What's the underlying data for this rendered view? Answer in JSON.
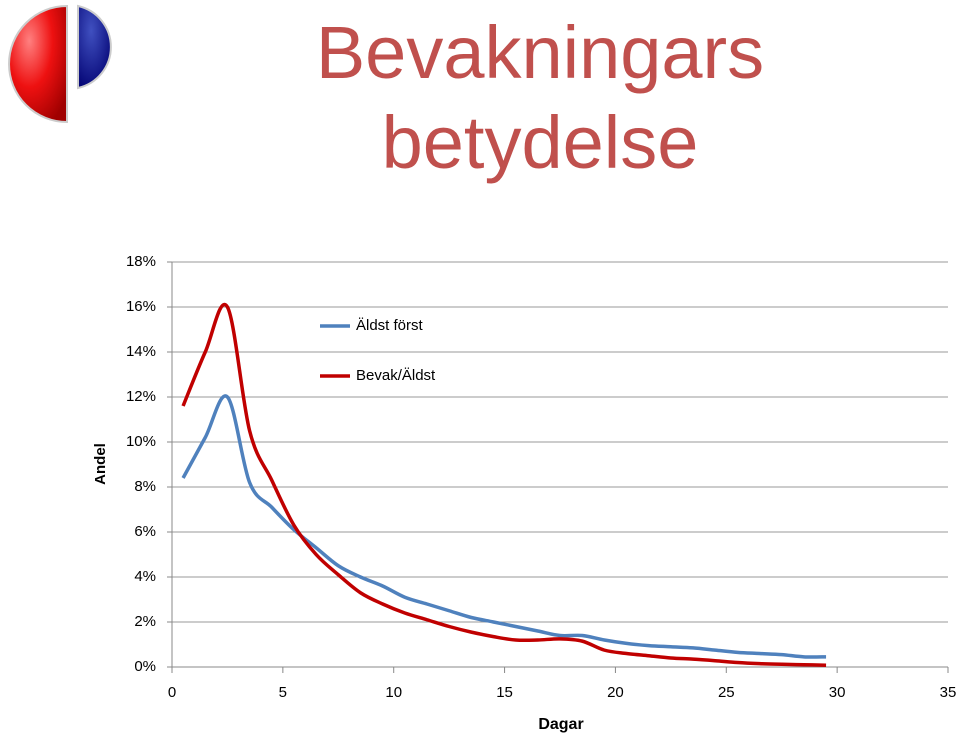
{
  "chart_data": {
    "type": "line",
    "title": "Bevakningars betydelse",
    "x_label": "Dagar",
    "y_label": "Andel",
    "x": [
      0.5,
      1.5,
      2.5,
      3.5,
      4.5,
      5.5,
      6.5,
      7.5,
      8.5,
      9.5,
      10.5,
      11.5,
      12.5,
      13.5,
      14.5,
      15.5,
      16.5,
      17.5,
      18.5,
      19.5,
      20.5,
      21.5,
      22.5,
      23.5,
      24.5,
      25.5,
      26.5,
      27.5,
      28.5,
      29.5
    ],
    "series": [
      {
        "name": "Äldst först",
        "color": "#4f81bd",
        "values": [
          8.4,
          10.2,
          12.0,
          8.2,
          7.1,
          6.1,
          5.3,
          4.5,
          4.0,
          3.6,
          3.1,
          2.8,
          2.5,
          2.2,
          2.0,
          1.8,
          1.6,
          1.4,
          1.4,
          1.2,
          1.05,
          0.95,
          0.9,
          0.85,
          0.75,
          0.65,
          0.6,
          0.55,
          0.45,
          0.45
        ]
      },
      {
        "name": "Bevak/Äldst",
        "color": "#c00000",
        "values": [
          11.6,
          14.0,
          16.0,
          10.5,
          8.3,
          6.3,
          5.0,
          4.1,
          3.3,
          2.8,
          2.4,
          2.1,
          1.8,
          1.55,
          1.35,
          1.2,
          1.2,
          1.25,
          1.15,
          0.75,
          0.6,
          0.5,
          0.4,
          0.35,
          0.28,
          0.2,
          0.15,
          0.12,
          0.1,
          0.08
        ]
      }
    ],
    "xlim": [
      0,
      35
    ],
    "xticks": [
      0,
      5,
      10,
      15,
      20,
      25,
      30,
      35
    ],
    "ylim": [
      0,
      18
    ],
    "yticks": [
      {
        "value": 0,
        "label": "0%"
      },
      {
        "value": 2,
        "label": "2%"
      },
      {
        "value": 4,
        "label": "4%"
      },
      {
        "value": 6,
        "label": "6%"
      },
      {
        "value": 8,
        "label": "8%"
      },
      {
        "value": 10,
        "label": "10%"
      },
      {
        "value": 12,
        "label": "12%"
      },
      {
        "value": 14,
        "label": "14%"
      },
      {
        "value": 16,
        "label": "16%"
      },
      {
        "value": 18,
        "label": "18%"
      }
    ],
    "grid": true,
    "legend": "top-left"
  }
}
